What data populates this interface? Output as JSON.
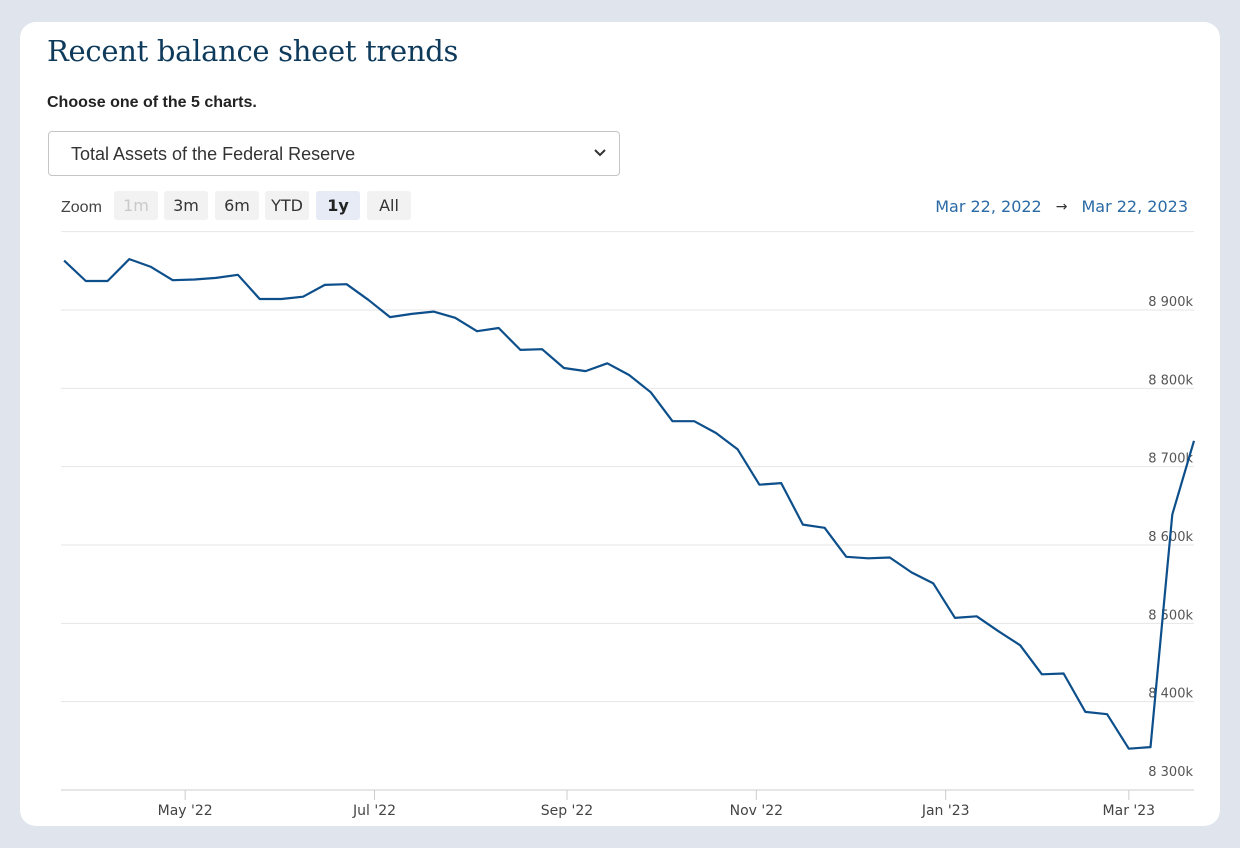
{
  "header": {
    "title": "Recent balance sheet trends",
    "instruction": "Choose one of the 5 charts."
  },
  "selector": {
    "selected": "Total Assets of the Federal Reserve"
  },
  "zoom": {
    "label": "Zoom",
    "buttons": [
      {
        "label": "1m",
        "state": "disabled"
      },
      {
        "label": "3m",
        "state": "normal"
      },
      {
        "label": "6m",
        "state": "normal"
      },
      {
        "label": "YTD",
        "state": "normal"
      },
      {
        "label": "1y",
        "state": "selected"
      },
      {
        "label": "All",
        "state": "normal"
      }
    ]
  },
  "range": {
    "from": "Mar 22, 2022",
    "arrow": "→",
    "to": "Mar 22, 2023"
  },
  "chart_data": {
    "type": "line",
    "title": "",
    "xlabel": "",
    "ylabel": "",
    "x_range": [
      "2022-03-22",
      "2023-03-22"
    ],
    "ylim": [
      8300,
      9000
    ],
    "y_ticks": [
      8300,
      8400,
      8500,
      8600,
      8700,
      8800,
      8900
    ],
    "y_tick_labels": [
      "8 300k",
      "8 400k",
      "8 500k",
      "8 600k",
      "8 700k",
      "8 800k",
      "8 900k"
    ],
    "x_ticks": [
      {
        "date": "2022-05-01",
        "label": "May '22"
      },
      {
        "date": "2022-07-01",
        "label": "Jul '22"
      },
      {
        "date": "2022-09-01",
        "label": "Sep '22"
      },
      {
        "date": "2022-11-01",
        "label": "Nov '22"
      },
      {
        "date": "2023-01-01",
        "label": "Jan '23"
      },
      {
        "date": "2023-03-01",
        "label": "Mar '23"
      }
    ],
    "grid": true,
    "line_color": "#0d4f8b",
    "series": [
      {
        "name": "",
        "points": [
          [
            "2022-03-23",
            8963
          ],
          [
            "2022-03-30",
            8937
          ],
          [
            "2022-04-06",
            8937
          ],
          [
            "2022-04-13",
            8965
          ],
          [
            "2022-04-20",
            8955
          ],
          [
            "2022-04-27",
            8938
          ],
          [
            "2022-05-04",
            8939
          ],
          [
            "2022-05-11",
            8941
          ],
          [
            "2022-05-18",
            8945
          ],
          [
            "2022-05-25",
            8914
          ],
          [
            "2022-06-01",
            8914
          ],
          [
            "2022-06-08",
            8917
          ],
          [
            "2022-06-15",
            8932
          ],
          [
            "2022-06-22",
            8933
          ],
          [
            "2022-06-29",
            8913
          ],
          [
            "2022-07-06",
            8891
          ],
          [
            "2022-07-13",
            8895
          ],
          [
            "2022-07-20",
            8898
          ],
          [
            "2022-07-27",
            8890
          ],
          [
            "2022-08-03",
            8873
          ],
          [
            "2022-08-10",
            8877
          ],
          [
            "2022-08-17",
            8849
          ],
          [
            "2022-08-24",
            8850
          ],
          [
            "2022-08-31",
            8826
          ],
          [
            "2022-09-07",
            8822
          ],
          [
            "2022-09-14",
            8832
          ],
          [
            "2022-09-21",
            8817
          ],
          [
            "2022-09-28",
            8795
          ],
          [
            "2022-10-05",
            8758
          ],
          [
            "2022-10-12",
            8758
          ],
          [
            "2022-10-19",
            8743
          ],
          [
            "2022-10-26",
            8722
          ],
          [
            "2022-11-02",
            8677
          ],
          [
            "2022-11-09",
            8679
          ],
          [
            "2022-11-16",
            8626
          ],
          [
            "2022-11-23",
            8622
          ],
          [
            "2022-11-30",
            8585
          ],
          [
            "2022-12-07",
            8583
          ],
          [
            "2022-12-14",
            8584
          ],
          [
            "2022-12-21",
            8565
          ],
          [
            "2022-12-28",
            8551
          ],
          [
            "2023-01-04",
            8507
          ],
          [
            "2023-01-11",
            8509
          ],
          [
            "2023-01-18",
            8490
          ],
          [
            "2023-01-25",
            8472
          ],
          [
            "2023-02-01",
            8435
          ],
          [
            "2023-02-08",
            8436
          ],
          [
            "2023-02-15",
            8387
          ],
          [
            "2023-02-22",
            8384
          ],
          [
            "2023-03-01",
            8340
          ],
          [
            "2023-03-08",
            8342
          ],
          [
            "2023-03-15",
            8639
          ],
          [
            "2023-03-22",
            8733
          ]
        ]
      }
    ]
  }
}
